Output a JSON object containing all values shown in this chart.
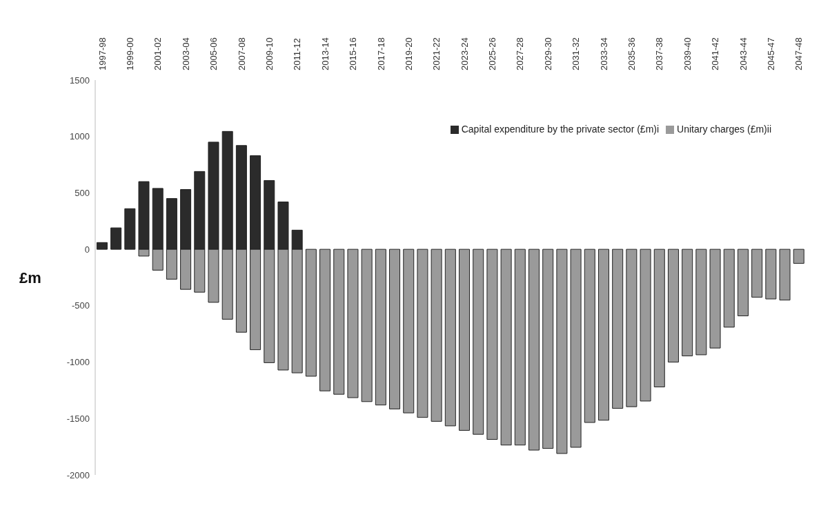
{
  "chart_data": {
    "type": "bar",
    "ylabel": "£m",
    "stacked": true,
    "legend": "top right",
    "grid": false,
    "categories": [
      "1997-98",
      null,
      "1999-00",
      null,
      "2001-02",
      null,
      "2003-04",
      null,
      "2005-06",
      null,
      "2007-08",
      null,
      "2009-10",
      null,
      "2011-12",
      null,
      "2013-14",
      null,
      "2015-16",
      null,
      "2017-18",
      null,
      "2019-20",
      null,
      "2021-22",
      null,
      "2023-24",
      null,
      "2025-26",
      null,
      "2027-28",
      null,
      "2029-30",
      null,
      "2031-32",
      null,
      "2033-34",
      null,
      "2035-36",
      null,
      "2037-38",
      null,
      "2039-40",
      null,
      "2041-42",
      null,
      "2043-44",
      null,
      "2045-47",
      null,
      "2047-48"
    ],
    "series": [
      {
        "name": "Capital expenditure by the private sector (£m)i",
        "color": "#2b2b2b",
        "values": [
          60,
          190,
          360,
          600,
          540,
          450,
          530,
          690,
          950,
          1045,
          920,
          830,
          610,
          420,
          170,
          0,
          0,
          0,
          0,
          0,
          0,
          0,
          0,
          0,
          0,
          0,
          0,
          0,
          0,
          0,
          0,
          0,
          0,
          0,
          0,
          0,
          0,
          0,
          0,
          0,
          0,
          0,
          0,
          0,
          0,
          0,
          0,
          0,
          0,
          0,
          0
        ]
      },
      {
        "name": "Unitary charges (£m)ii",
        "color": "#9a9a9a",
        "values": [
          0,
          0,
          0,
          -60,
          -185,
          -265,
          -355,
          -380,
          -470,
          -620,
          -735,
          -890,
          -1005,
          -1070,
          -1095,
          -1125,
          -1255,
          -1285,
          -1315,
          -1350,
          -1380,
          -1415,
          -1450,
          -1490,
          -1525,
          -1565,
          -1605,
          -1640,
          -1685,
          -1735,
          -1735,
          -1780,
          -1765,
          -1810,
          -1755,
          -1535,
          -1515,
          -1410,
          -1395,
          -1345,
          -1220,
          -1000,
          -945,
          -935,
          -875,
          -690,
          -590,
          -425,
          -440,
          -450,
          -125
        ]
      }
    ],
    "ylim": [
      -2000,
      1500
    ],
    "yticks": [
      -2000,
      -1500,
      -1000,
      -500,
      0,
      500,
      1000,
      1500
    ]
  }
}
